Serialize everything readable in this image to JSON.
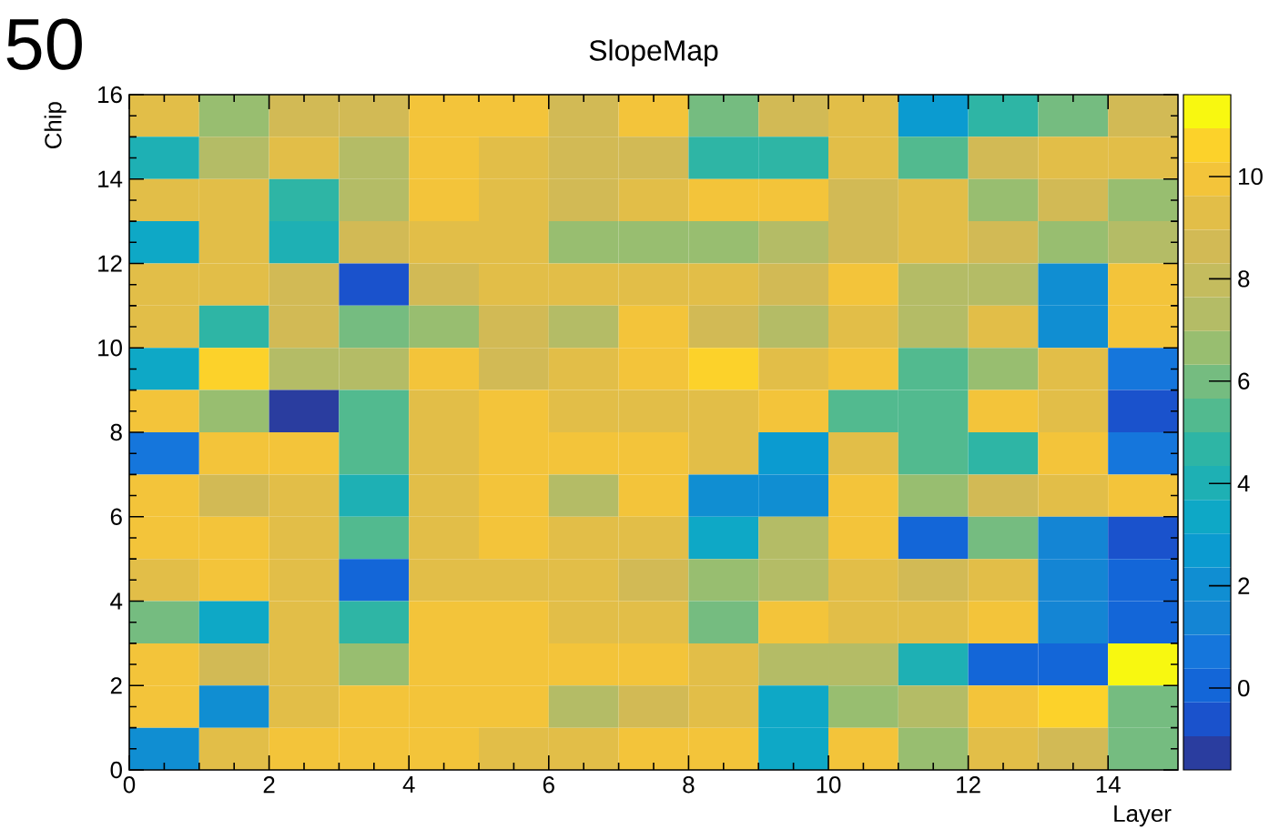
{
  "chart_data": {
    "type": "heatmap",
    "title": "SlopeMap",
    "xlabel": "Layer",
    "ylabel": "Chip",
    "annotations": [
      "50"
    ],
    "xlim": [
      0,
      15
    ],
    "ylim": [
      0,
      16
    ],
    "xticks": [
      0,
      2,
      4,
      6,
      8,
      10,
      12,
      14
    ],
    "yticks": [
      0,
      2,
      4,
      6,
      8,
      10,
      12,
      14,
      16
    ],
    "clim": [
      -1.6,
      11.6
    ],
    "cticks": [
      0,
      2,
      4,
      6,
      8,
      10
    ],
    "cells": [
      [
        9.2,
        6.6,
        8.6,
        8.6,
        9.9,
        9.9,
        8.6,
        9.9,
        6.0,
        8.6,
        9.2,
        2.7,
        4.6,
        6.0,
        8.6
      ],
      [
        4.0,
        7.3,
        9.2,
        7.3,
        9.9,
        9.2,
        8.6,
        8.6,
        4.6,
        4.6,
        9.2,
        5.3,
        8.6,
        9.2,
        9.2
      ],
      [
        9.2,
        9.2,
        4.6,
        7.3,
        9.9,
        9.2,
        8.6,
        9.2,
        9.9,
        9.9,
        8.6,
        9.2,
        6.6,
        8.6,
        6.6
      ],
      [
        3.3,
        9.2,
        4.0,
        8.6,
        9.2,
        9.2,
        6.6,
        6.6,
        6.6,
        7.3,
        8.6,
        9.2,
        8.6,
        6.6,
        7.3
      ],
      [
        9.2,
        9.2,
        8.6,
        -0.6,
        8.6,
        9.2,
        9.2,
        9.2,
        9.2,
        8.6,
        9.9,
        7.3,
        7.3,
        2.0,
        9.9
      ],
      [
        9.2,
        4.6,
        8.6,
        6.0,
        6.6,
        8.6,
        7.3,
        9.9,
        8.6,
        7.3,
        9.2,
        7.3,
        9.2,
        2.0,
        9.9
      ],
      [
        3.3,
        10.6,
        7.3,
        7.3,
        9.9,
        8.6,
        9.2,
        9.9,
        10.6,
        9.2,
        9.9,
        5.3,
        6.6,
        9.2,
        0.7
      ],
      [
        9.9,
        6.6,
        -1.3,
        5.3,
        9.2,
        9.9,
        9.2,
        9.2,
        9.2,
        9.9,
        5.3,
        5.3,
        9.9,
        9.2,
        -0.6
      ],
      [
        0.7,
        9.9,
        9.9,
        5.3,
        9.2,
        9.9,
        9.9,
        9.9,
        9.2,
        2.7,
        9.2,
        5.3,
        4.6,
        9.9,
        0.7
      ],
      [
        9.9,
        8.6,
        9.2,
        4.0,
        9.2,
        9.9,
        7.3,
        9.9,
        2.0,
        2.0,
        9.9,
        6.6,
        8.6,
        9.2,
        9.9
      ],
      [
        9.9,
        9.9,
        9.2,
        5.3,
        9.2,
        9.9,
        9.2,
        9.2,
        3.3,
        7.3,
        9.9,
        0.0,
        6.0,
        1.4,
        -0.6
      ],
      [
        9.2,
        9.9,
        9.2,
        0.0,
        9.2,
        9.2,
        9.2,
        8.6,
        6.6,
        7.3,
        9.2,
        8.6,
        9.2,
        1.4,
        0.0
      ],
      [
        6.0,
        3.3,
        9.2,
        4.6,
        9.9,
        9.9,
        9.2,
        9.2,
        6.0,
        9.9,
        9.2,
        9.2,
        9.9,
        1.4,
        0.0
      ],
      [
        9.9,
        8.6,
        9.2,
        6.6,
        9.9,
        9.9,
        9.9,
        9.9,
        9.2,
        7.3,
        7.3,
        4.0,
        0.0,
        0.0,
        11.2
      ],
      [
        9.9,
        2.0,
        9.2,
        9.9,
        9.9,
        9.9,
        7.3,
        8.6,
        9.2,
        3.3,
        6.6,
        7.3,
        9.9,
        10.6,
        6.0
      ],
      [
        2.0,
        9.2,
        9.9,
        9.9,
        9.9,
        9.2,
        9.2,
        9.9,
        9.9,
        3.3,
        9.9,
        6.6,
        9.2,
        8.6,
        6.0
      ]
    ]
  }
}
